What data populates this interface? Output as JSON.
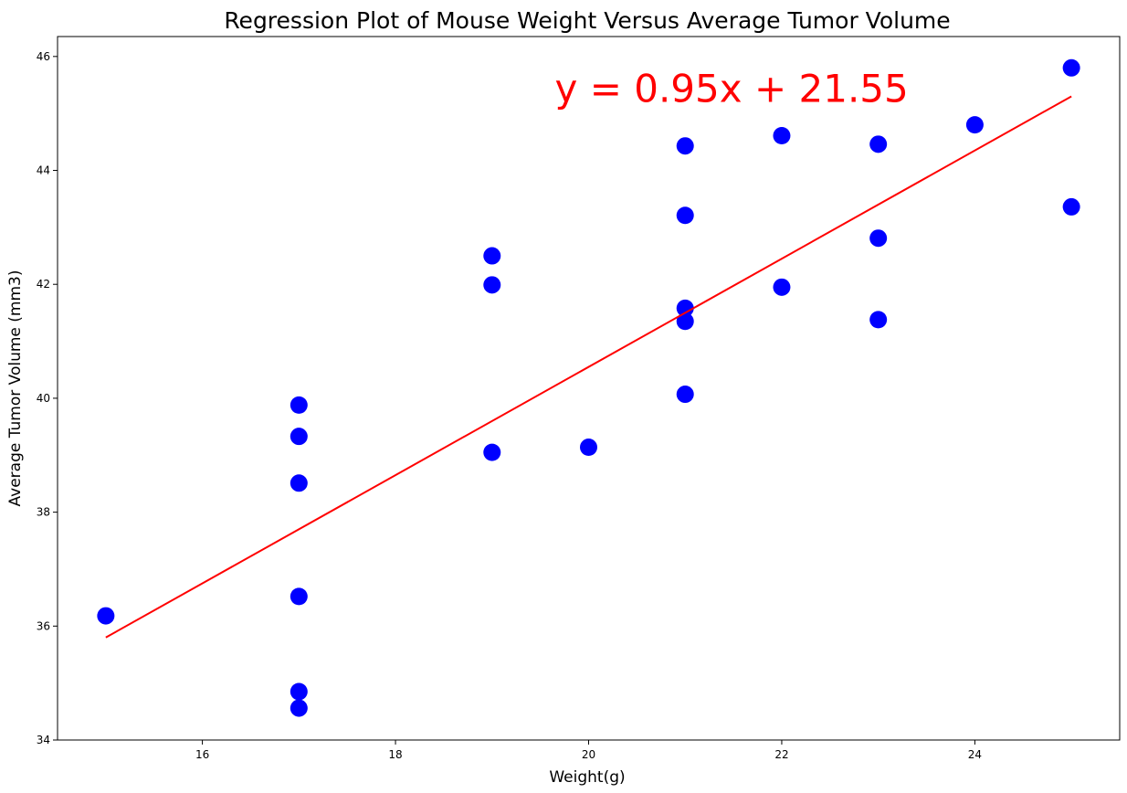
{
  "chart_data": {
    "type": "scatter",
    "title": "Regression Plot of Mouse Weight Versus Average Tumor Volume",
    "xlabel": "Weight(g)",
    "ylabel": "Average Tumor Volume (mm3)",
    "xlim": [
      14.5,
      25.5
    ],
    "ylim": [
      34,
      46.35
    ],
    "xticks": [
      16,
      18,
      20,
      22,
      24
    ],
    "yticks": [
      34,
      36,
      38,
      40,
      42,
      44,
      46
    ],
    "grid": false,
    "point_color": "#0000ff",
    "line_color": "#ff0000",
    "points": [
      {
        "x": 15,
        "y": 36.18
      },
      {
        "x": 17,
        "y": 39.88
      },
      {
        "x": 17,
        "y": 39.33
      },
      {
        "x": 17,
        "y": 38.51
      },
      {
        "x": 17,
        "y": 36.52
      },
      {
        "x": 17,
        "y": 34.85
      },
      {
        "x": 17,
        "y": 34.56
      },
      {
        "x": 19,
        "y": 42.5
      },
      {
        "x": 19,
        "y": 41.99
      },
      {
        "x": 19,
        "y": 39.05
      },
      {
        "x": 20,
        "y": 39.14
      },
      {
        "x": 21,
        "y": 44.43
      },
      {
        "x": 21,
        "y": 43.21
      },
      {
        "x": 21,
        "y": 41.58
      },
      {
        "x": 21,
        "y": 41.35
      },
      {
        "x": 21,
        "y": 40.07
      },
      {
        "x": 22,
        "y": 44.61
      },
      {
        "x": 22,
        "y": 41.95
      },
      {
        "x": 23,
        "y": 44.46
      },
      {
        "x": 23,
        "y": 42.81
      },
      {
        "x": 23,
        "y": 41.38
      },
      {
        "x": 24,
        "y": 44.8
      },
      {
        "x": 25,
        "y": 45.8
      },
      {
        "x": 25,
        "y": 43.36
      }
    ],
    "regression": {
      "slope": 0.95,
      "intercept": 21.55,
      "x_range": [
        15,
        25
      ],
      "equation_label": "y = 0.95x + 21.55",
      "label_at": {
        "x": 19.65,
        "y": 45.2
      }
    }
  }
}
